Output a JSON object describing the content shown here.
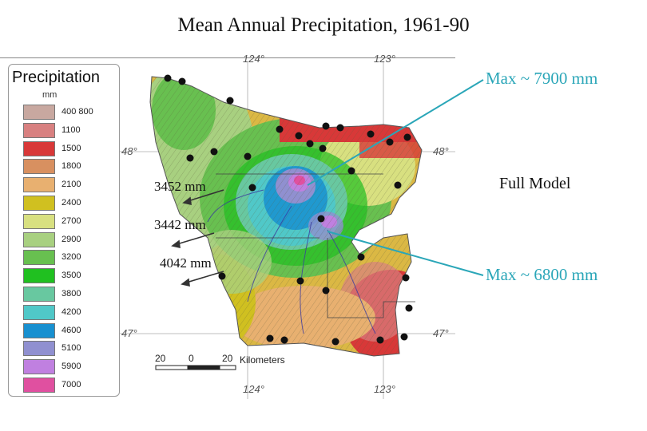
{
  "title": "Mean Annual Precipitation, 1961-90",
  "legend": {
    "title": "Precipitation",
    "unit": "mm",
    "items": [
      {
        "label": "400   800",
        "color": "#c8a8a0"
      },
      {
        "label": "1100",
        "color": "#d88080"
      },
      {
        "label": "1500",
        "color": "#d83838"
      },
      {
        "label": "1800",
        "color": "#d89060"
      },
      {
        "label": "2100",
        "color": "#e8b070"
      },
      {
        "label": "2400",
        "color": "#d0c020"
      },
      {
        "label": "2700",
        "color": "#d8e080"
      },
      {
        "label": "2900",
        "color": "#a8d080"
      },
      {
        "label": "3200",
        "color": "#68c050"
      },
      {
        "label": "3500",
        "color": "#20c020"
      },
      {
        "label": "3800",
        "color": "#68c8a0"
      },
      {
        "label": "4200",
        "color": "#50c8c8"
      },
      {
        "label": "4600",
        "color": "#1890d0"
      },
      {
        "label": "5100",
        "color": "#9090d0"
      },
      {
        "label": "5900",
        "color": "#c080e0"
      },
      {
        "label": "7000",
        "color": "#e050a0"
      }
    ]
  },
  "coords": {
    "lon_top_1": "124°",
    "lon_top_2": "123°",
    "lon_bottom_1": "124°",
    "lon_bottom_2": "123°",
    "lat_left_1": "48°",
    "lat_right_1": "48°",
    "lat_left_2": "47°",
    "lat_right_2": "47°"
  },
  "annotations": {
    "max_north": "Max ~ 7900 mm",
    "max_south": "Max ~ 6800 mm",
    "full_model": "Full Model",
    "station_1": "3452 mm",
    "station_2": "3442 mm",
    "station_3": "4042 mm"
  },
  "scalebar": {
    "t1": "20",
    "t2": "0",
    "t3": "20",
    "unit": "Kilometers"
  },
  "colors": {
    "accent_line": "#2aa6b8"
  }
}
